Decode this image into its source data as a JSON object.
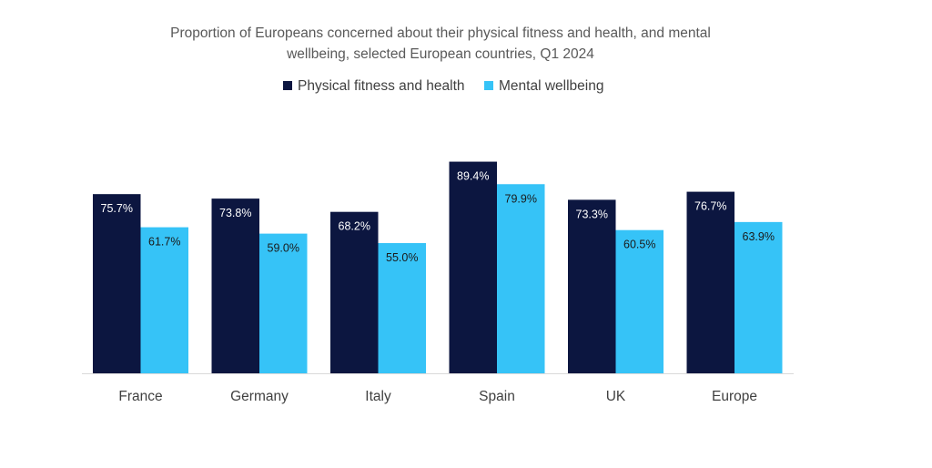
{
  "chart_data": {
    "type": "bar",
    "title_line1": "Proportion of Europeans concerned about their physical fitness and health, and mental",
    "title_line2": "wellbeing, selected European countries, Q1 2024",
    "categories": [
      "France",
      "Germany",
      "Italy",
      "Spain",
      "UK",
      "Europe"
    ],
    "series": [
      {
        "name": "Physical fitness and health",
        "color": "#0c1640",
        "label_color": "#ffffff",
        "values": [
          75.7,
          73.8,
          68.2,
          89.4,
          73.3,
          76.7
        ],
        "labels": [
          "75.7%",
          "73.8%",
          "68.2%",
          "89.4%",
          "73.3%",
          "76.7%"
        ]
      },
      {
        "name": "Mental wellbeing",
        "color": "#36c3f7",
        "label_color": "#1a1a1a",
        "values": [
          61.7,
          59.0,
          55.0,
          79.9,
          60.5,
          63.9
        ],
        "labels": [
          "61.7%",
          "59.0%",
          "55.0%",
          "79.9%",
          "60.5%",
          "63.9%"
        ]
      }
    ],
    "ylim": [
      0,
      100
    ],
    "grid": false,
    "legend_position": "top-center"
  }
}
